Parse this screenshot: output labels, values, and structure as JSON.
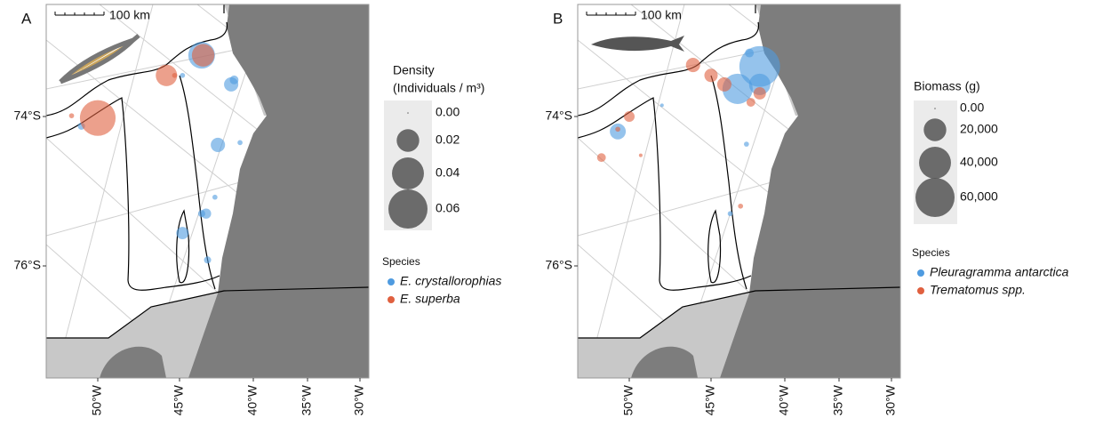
{
  "chart_data": [
    {
      "type": "bubble",
      "label": "A",
      "scale_label": "100 km",
      "xlim": [
        -53.15,
        -29.15
      ],
      "xticks": [
        {
          "value": -50,
          "label": "50°W"
        },
        {
          "value": -45,
          "label": "45°W"
        },
        {
          "value": -40,
          "label": "40°W"
        },
        {
          "value": -35,
          "label": "35°W"
        },
        {
          "value": -30,
          "label": "30°W"
        }
      ],
      "ylim": [
        -77.5,
        -72.5
      ],
      "yticks": [
        {
          "value": -74,
          "label": "74°S"
        },
        {
          "value": -76,
          "label": "76°S"
        }
      ],
      "size_title": [
        "Density",
        "(Individuals / m³)"
      ],
      "size_ticks": [
        {
          "value": 0,
          "label": "0.00"
        },
        0.02,
        0.04,
        0.06
      ],
      "legend_title": "Species",
      "series": [
        {
          "name": "E. crystallorophias",
          "color": "#4f9be0",
          "x": [
            -43.5,
            -41.5,
            -41.3,
            -42.4,
            -40.9,
            -43.2,
            -43.5,
            -44.8,
            -43.1,
            -42.6,
            -51.0,
            -44.8
          ],
          "y": [
            -73.18,
            -73.57,
            -73.51,
            -74.38,
            -74.35,
            -75.3,
            -75.3,
            -75.56,
            -75.92,
            -75.08,
            -74.13,
            -73.45
          ],
          "values": [
            0.028,
            0.008,
            0.003,
            0.008,
            0.001,
            0.004,
            0.002,
            0.006,
            0.002,
            0.001,
            0.002,
            0.001
          ]
        },
        {
          "name": "E. superba",
          "color": "#e0603f",
          "x": [
            -50.0,
            -45.8,
            -43.4,
            -51.6,
            -45.3
          ],
          "y": [
            -74.02,
            -73.45,
            -73.18,
            -73.99,
            -73.45
          ],
          "values": [
            0.05,
            0.018,
            0.02,
            0.001,
            0.001
          ]
        }
      ]
    },
    {
      "type": "bubble",
      "label": "B",
      "scale_label": "100 km",
      "xlim": [
        -53.15,
        -29.15
      ],
      "xticks": [
        {
          "value": -50,
          "label": "50°W"
        },
        {
          "value": -45,
          "label": "45°W"
        },
        {
          "value": -40,
          "label": "40°W"
        },
        {
          "value": -35,
          "label": "35°W"
        },
        {
          "value": -30,
          "label": "30°W"
        }
      ],
      "ylim": [
        -77.5,
        -72.5
      ],
      "yticks": [
        {
          "value": -74,
          "label": "74°S"
        },
        {
          "value": -76,
          "label": "76°S"
        }
      ],
      "size_title": [
        "Biomass (g)"
      ],
      "size_ticks": [
        {
          "value": 0,
          "label": "0.00"
        },
        {
          "value": 20000,
          "label": "20,000"
        },
        {
          "value": 40000,
          "label": "40,000"
        },
        {
          "value": 60000,
          "label": "60,000"
        }
      ],
      "legend_title": "Species",
      "series": [
        {
          "name": "Pleuragramma antarctica",
          "color": "#4f9be0",
          "x": [
            -41.7,
            -43.2,
            -41.7,
            -50.7,
            -42.4,
            -48.0,
            -42.6,
            -43.7
          ],
          "y": [
            -73.33,
            -73.63,
            -73.57,
            -74.2,
            -73.15,
            -73.85,
            -74.37,
            -75.3
          ],
          "values": [
            65000,
            36000,
            18000,
            10000,
            3000,
            500,
            1000,
            1000
          ]
        },
        {
          "name": "Trematomus spp.",
          "color": "#e0603f",
          "x": [
            -46.1,
            -45.0,
            -44.1,
            -41.7,
            -50.0,
            -51.7,
            -42.3,
            -50.7,
            -43.0,
            -49.3
          ],
          "y": [
            -73.31,
            -73.45,
            -73.57,
            -73.69,
            -74.0,
            -74.55,
            -73.81,
            -74.17,
            -75.2,
            -74.52
          ],
          "values": [
            8000,
            7000,
            8000,
            6000,
            4500,
            3000,
            3000,
            1000,
            1000,
            500
          ]
        }
      ]
    }
  ]
}
